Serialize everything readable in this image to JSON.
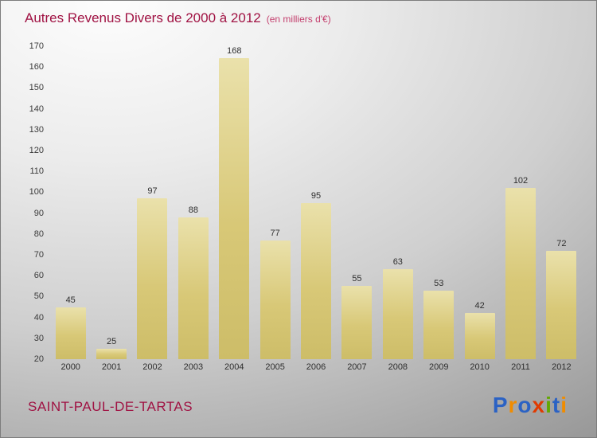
{
  "title": "Autres Revenus Divers de 2000 à 2012",
  "subtitle": "(en milliers d'€)",
  "footer": {
    "commune": "SAINT-PAUL-DE-TARTAS"
  },
  "logo": {
    "name": "Proxiti",
    "letters": [
      {
        "ch": "P",
        "color": "#2b62c4"
      },
      {
        "ch": "r",
        "color": "#f08c00"
      },
      {
        "ch": "o",
        "color": "#2b62c4"
      },
      {
        "ch": "x",
        "color": "#e03a00"
      },
      {
        "ch": "i",
        "color": "#63a800"
      },
      {
        "ch": "t",
        "color": "#2b62c4"
      },
      {
        "ch": "i",
        "color": "#f08c00"
      }
    ]
  },
  "chart_data": {
    "type": "bar",
    "title": "Autres Revenus Divers de 2000 à 2012",
    "subtitle": "(en milliers d'€)",
    "categories": [
      "2000",
      "2001",
      "2002",
      "2003",
      "2004",
      "2005",
      "2006",
      "2007",
      "2008",
      "2009",
      "2010",
      "2011",
      "2012"
    ],
    "values": [
      45,
      25,
      97,
      88,
      168,
      77,
      95,
      55,
      63,
      53,
      42,
      102,
      72
    ],
    "xlabel": "",
    "ylabel": "",
    "ylim": [
      20,
      170
    ],
    "ytick_step": 10,
    "grid": false,
    "legend": false,
    "value_labels": true,
    "bar_color": "#d8c877"
  }
}
